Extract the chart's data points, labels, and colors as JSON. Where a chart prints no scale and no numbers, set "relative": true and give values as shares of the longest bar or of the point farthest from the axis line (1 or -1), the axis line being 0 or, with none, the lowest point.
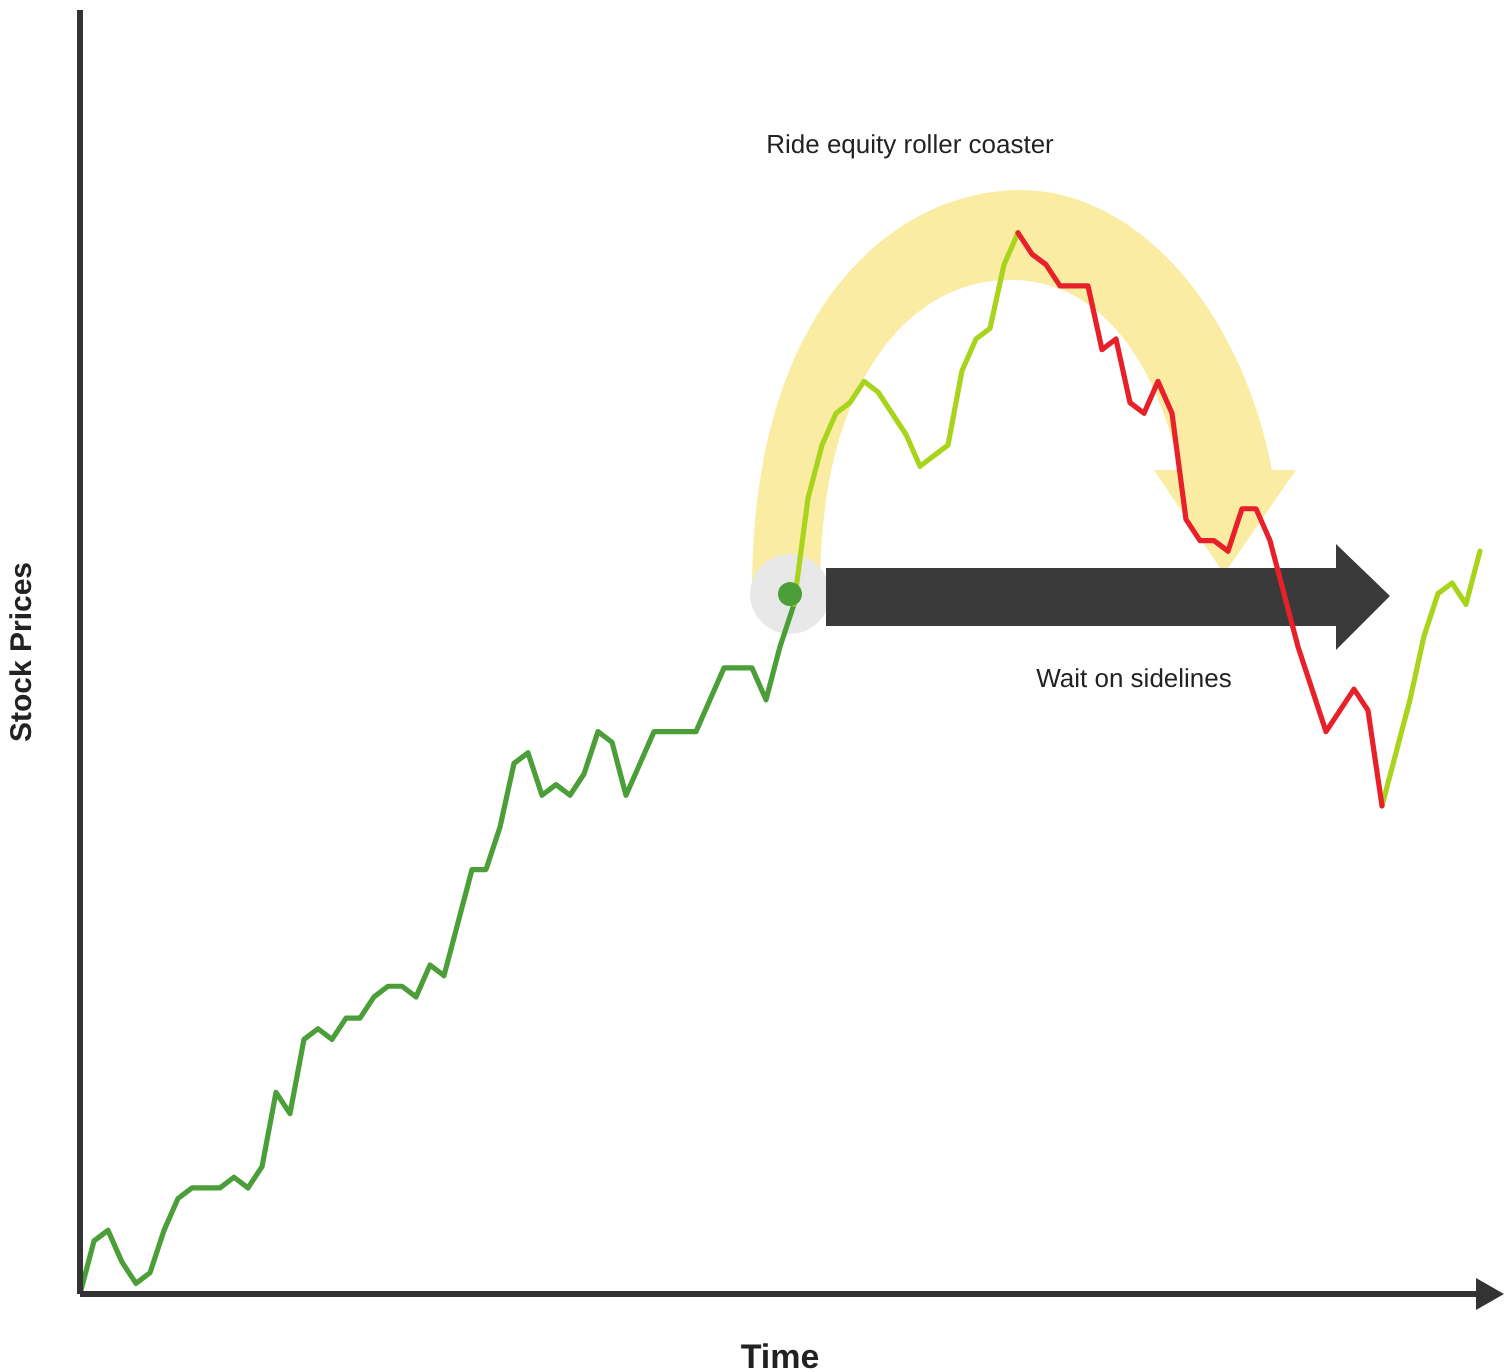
{
  "chart_data": {
    "type": "line",
    "relative": true,
    "xlabel": "Time",
    "ylabel": "Stock Prices",
    "annotations": [
      "Ride equity roller coaster",
      "Wait on sidelines"
    ],
    "categories": [
      null,
      null,
      null,
      null,
      null,
      null,
      null,
      null,
      null,
      null,
      null,
      null,
      null,
      null,
      null,
      null,
      null,
      null,
      null,
      null,
      null,
      null,
      null,
      null,
      null,
      null,
      null,
      null,
      null,
      null,
      null,
      null,
      null,
      null,
      null,
      null,
      null,
      null,
      null,
      null,
      null,
      null,
      null,
      null,
      null,
      null,
      null,
      null,
      null,
      null,
      null,
      null,
      null,
      null,
      null,
      null,
      null,
      null,
      null,
      null,
      null,
      null,
      null,
      null,
      null,
      null,
      null,
      null,
      null,
      null,
      null,
      null,
      null,
      null,
      null,
      null,
      null,
      null,
      null,
      null,
      null,
      null,
      null,
      null,
      null,
      null,
      null,
      null,
      null,
      null,
      null,
      null,
      null,
      null,
      null,
      null,
      null,
      null,
      null,
      null,
      null
    ],
    "series": [
      {
        "color": "#4c9f38",
        "values": [
          0,
          0.05,
          0.06,
          0.03,
          0.01,
          0.02,
          0.06,
          0.09,
          0.1,
          0.1,
          0.1,
          0.11,
          0.1,
          0.12,
          0.19,
          0.17,
          0.24,
          0.25,
          0.24,
          0.26,
          0.26,
          0.28,
          0.29,
          0.29,
          0.28,
          0.31,
          0.3,
          0.35,
          0.4,
          0.4,
          0.44,
          0.5,
          0.51,
          0.47,
          0.48,
          0.47,
          0.49,
          0.53,
          0.52,
          0.47,
          0.5,
          0.53,
          0.53,
          0.53,
          0.53,
          0.56,
          0.59,
          0.59,
          0.59,
          0.56,
          0.61,
          0.65,
          null,
          null,
          null,
          null,
          null,
          null,
          null,
          null,
          null,
          null,
          null,
          null,
          null,
          null,
          null,
          null,
          null,
          null,
          null,
          null,
          null,
          null,
          null,
          null,
          null,
          null,
          null,
          null,
          null,
          null,
          null,
          null,
          null,
          null,
          null,
          null,
          null,
          null,
          null,
          null,
          null,
          null,
          null,
          null,
          null,
          null,
          null,
          null,
          null
        ]
      },
      {
        "color": "#a8d51c",
        "values": [
          null,
          null,
          null,
          null,
          null,
          null,
          null,
          null,
          null,
          null,
          null,
          null,
          null,
          null,
          null,
          null,
          null,
          null,
          null,
          null,
          null,
          null,
          null,
          null,
          null,
          null,
          null,
          null,
          null,
          null,
          null,
          null,
          null,
          null,
          null,
          null,
          null,
          null,
          null,
          null,
          null,
          null,
          null,
          null,
          null,
          null,
          null,
          null,
          null,
          null,
          null,
          0.65,
          0.75,
          0.8,
          0.83,
          0.84,
          0.86,
          0.85,
          0.83,
          0.81,
          0.78,
          0.79,
          0.8,
          0.87,
          0.9,
          0.91,
          0.97,
          1,
          null,
          null,
          null,
          null,
          null,
          null,
          null,
          null,
          null,
          null,
          null,
          null,
          null,
          null,
          null,
          null,
          null,
          null,
          null,
          null,
          null,
          null,
          null,
          null,
          null,
          0.46,
          0.51,
          0.56,
          0.62,
          0.66,
          0.67,
          0.65,
          0.7
        ]
      },
      {
        "color": "#e8202a",
        "values": [
          null,
          null,
          null,
          null,
          null,
          null,
          null,
          null,
          null,
          null,
          null,
          null,
          null,
          null,
          null,
          null,
          null,
          null,
          null,
          null,
          null,
          null,
          null,
          null,
          null,
          null,
          null,
          null,
          null,
          null,
          null,
          null,
          null,
          null,
          null,
          null,
          null,
          null,
          null,
          null,
          null,
          null,
          null,
          null,
          null,
          null,
          null,
          null,
          null,
          null,
          null,
          null,
          null,
          null,
          null,
          null,
          null,
          null,
          null,
          null,
          null,
          null,
          null,
          null,
          null,
          null,
          null,
          1,
          0.98,
          0.97,
          0.95,
          0.95,
          0.95,
          0.89,
          0.9,
          0.84,
          0.83,
          0.86,
          0.83,
          0.73,
          0.71,
          0.71,
          0.7,
          0.74,
          0.74,
          0.71,
          0.66,
          0.61,
          0.57,
          0.53,
          0.55,
          0.57,
          0.55,
          0.46,
          null,
          null,
          null,
          null,
          null,
          null,
          null
        ]
      }
    ]
  }
}
